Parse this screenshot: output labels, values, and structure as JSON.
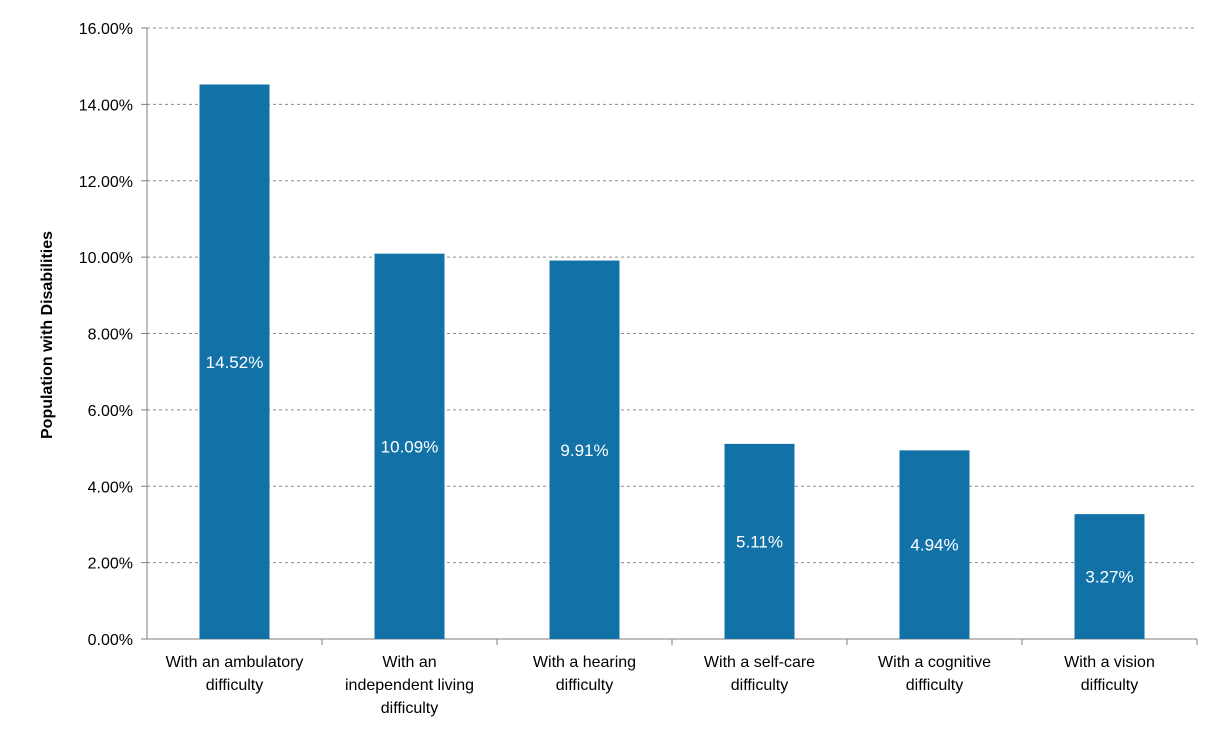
{
  "chart_data": {
    "type": "bar",
    "title": "",
    "xlabel": "",
    "ylabel": "Population with Disabilities",
    "ylim": [
      0,
      16
    ],
    "y_ticks": [
      "0.00%",
      "2.00%",
      "4.00%",
      "6.00%",
      "8.00%",
      "10.00%",
      "12.00%",
      "14.00%",
      "16.00%"
    ],
    "grid": true,
    "legend": "none",
    "bar_color": "#1272a8",
    "categories": [
      [
        "With an ambulatory",
        "difficulty"
      ],
      [
        "With an",
        "independent living",
        "difficulty"
      ],
      [
        "With a hearing",
        "difficulty"
      ],
      [
        "With a self-care",
        "difficulty"
      ],
      [
        "With a cognitive",
        "difficulty"
      ],
      [
        "With a vision",
        "difficulty"
      ]
    ],
    "values": [
      14.52,
      10.09,
      9.91,
      5.11,
      4.94,
      3.27
    ],
    "data_labels": [
      "14.52%",
      "10.09%",
      "9.91%",
      "5.11%",
      "4.94%",
      "3.27%"
    ]
  }
}
